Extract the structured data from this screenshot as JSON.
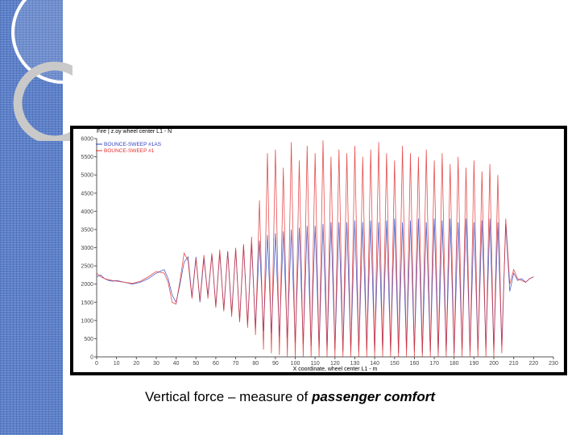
{
  "caption": {
    "text": "Vertical force – measure of",
    "emphasis": "passenger comfort"
  },
  "colors": {
    "band": "#5b7fc9",
    "series_blue": "#3344bb",
    "series_red": "#e03030"
  },
  "chart_data": {
    "type": "line",
    "title": "Fire | z.oy wheel center L1 - N",
    "xlabel": "X coordinate, wheel center L1 - m",
    "ylabel": "",
    "xlim": [
      0,
      230
    ],
    "ylim": [
      0,
      6000
    ],
    "xticks": [
      0,
      10,
      20,
      30,
      40,
      50,
      60,
      70,
      80,
      90,
      100,
      110,
      120,
      130,
      140,
      150,
      160,
      170,
      180,
      190,
      200,
      210,
      220,
      230
    ],
    "yticks": [
      0,
      500,
      1000,
      1500,
      2000,
      2500,
      3000,
      3500,
      4000,
      4500,
      5000,
      5500,
      6000
    ],
    "grid": false,
    "legend_position": "top-left",
    "series": [
      {
        "name": "BOUNCE-SWEEP #1AS",
        "color": "#3344bb",
        "x": [
          0,
          2,
          4,
          6,
          8,
          10,
          14,
          18,
          22,
          26,
          30,
          34,
          36,
          38,
          40,
          42,
          44,
          46,
          48,
          50,
          52,
          54,
          56,
          58,
          60,
          62,
          64,
          66,
          68,
          70,
          72,
          74,
          76,
          78,
          80,
          82,
          84,
          86,
          88,
          90,
          92,
          94,
          96,
          98,
          100,
          102,
          104,
          106,
          108,
          110,
          112,
          114,
          116,
          118,
          120,
          122,
          124,
          126,
          128,
          130,
          132,
          134,
          136,
          138,
          140,
          142,
          144,
          146,
          148,
          150,
          152,
          154,
          156,
          158,
          160,
          162,
          164,
          166,
          168,
          170,
          172,
          174,
          176,
          178,
          180,
          182,
          184,
          186,
          188,
          190,
          192,
          194,
          196,
          198,
          200,
          202,
          204,
          206,
          208,
          210,
          212,
          214,
          216,
          218,
          220
        ],
        "y": [
          2200,
          2250,
          2150,
          2100,
          2080,
          2100,
          2050,
          2000,
          2050,
          2150,
          2300,
          2400,
          2150,
          1700,
          1500,
          2000,
          2600,
          2750,
          1650,
          2750,
          1500,
          2700,
          1700,
          2800,
          1400,
          2850,
          1300,
          2900,
          1200,
          2950,
          1000,
          3050,
          900,
          3100,
          800,
          3200,
          700,
          3350,
          650,
          3400,
          550,
          3450,
          500,
          3500,
          400,
          3550,
          350,
          3600,
          300,
          3600,
          250,
          3650,
          200,
          3700,
          200,
          3700,
          150,
          3700,
          150,
          3750,
          150,
          3700,
          200,
          3750,
          150,
          3700,
          200,
          3750,
          150,
          3800,
          100,
          3700,
          200,
          3750,
          150,
          3800,
          100,
          3700,
          150,
          3800,
          100,
          3750,
          150,
          3800,
          100,
          3700,
          200,
          3800,
          150,
          3700,
          200,
          3750,
          250,
          3800,
          200,
          3700,
          300,
          3650,
          1800,
          2300,
          2100,
          2150,
          2050,
          2150,
          2200
        ]
      },
      {
        "name": "BOUNCE-SWEEP #1",
        "color": "#e03030",
        "x": [
          0,
          2,
          4,
          6,
          8,
          10,
          14,
          18,
          22,
          26,
          30,
          34,
          36,
          38,
          40,
          42,
          44,
          46,
          48,
          50,
          52,
          54,
          56,
          58,
          60,
          62,
          64,
          66,
          68,
          70,
          72,
          74,
          76,
          78,
          80,
          82,
          84,
          86,
          88,
          90,
          92,
          94,
          96,
          98,
          100,
          102,
          104,
          106,
          108,
          110,
          112,
          114,
          116,
          118,
          120,
          122,
          124,
          126,
          128,
          130,
          132,
          134,
          136,
          138,
          140,
          142,
          144,
          146,
          148,
          150,
          152,
          154,
          156,
          158,
          160,
          162,
          164,
          166,
          168,
          170,
          172,
          174,
          176,
          178,
          180,
          182,
          184,
          186,
          188,
          190,
          192,
          194,
          196,
          198,
          200,
          202,
          204,
          206,
          208,
          210,
          212,
          214,
          216,
          218,
          220
        ],
        "y": [
          2300,
          2200,
          2150,
          2120,
          2100,
          2080,
          2050,
          2020,
          2080,
          2200,
          2350,
          2300,
          2050,
          1500,
          1450,
          2100,
          2850,
          2650,
          1600,
          2700,
          1550,
          2800,
          1600,
          2850,
          1350,
          2950,
          1250,
          2900,
          1100,
          3000,
          950,
          3100,
          800,
          3300,
          600,
          4300,
          200,
          5600,
          100,
          5700,
          50,
          5200,
          0,
          5900,
          0,
          5400,
          0,
          5800,
          0,
          5600,
          0,
          5950,
          0,
          5500,
          0,
          5700,
          0,
          5600,
          0,
          5800,
          0,
          5500,
          0,
          5700,
          0,
          5900,
          0,
          5600,
          0,
          5400,
          0,
          5800,
          0,
          5600,
          0,
          5500,
          0,
          5700,
          0,
          5400,
          0,
          5600,
          0,
          5300,
          0,
          5500,
          0,
          5200,
          0,
          5400,
          0,
          5100,
          0,
          5300,
          0,
          5000,
          100,
          3800,
          2000,
          2400,
          2150,
          2100,
          2050,
          2150,
          2200
        ]
      }
    ]
  }
}
